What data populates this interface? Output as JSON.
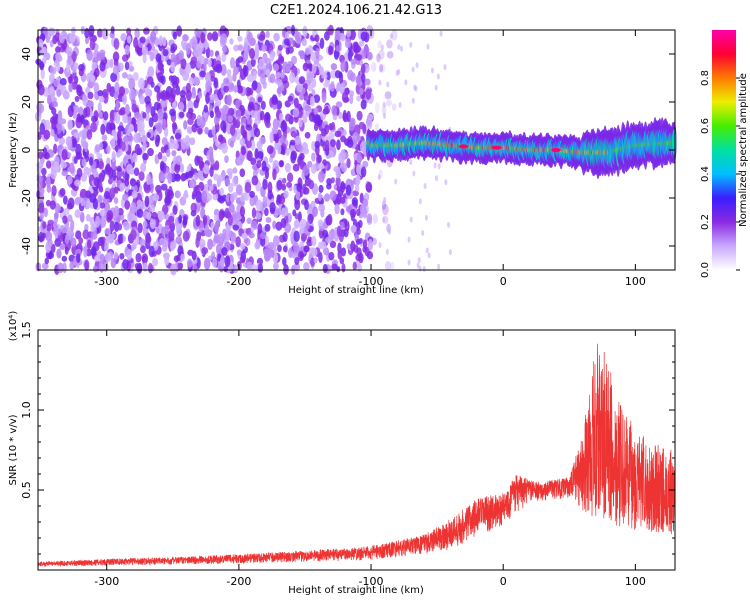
{
  "title": "C2E1.2024.106.21.42.G13",
  "chart_data": [
    {
      "type": "heatmap",
      "xlabel": "Height of straight line (km)",
      "ylabel": "Frequency (Hz)",
      "xlim": [
        -352,
        130
      ],
      "ylim": [
        -50,
        50
      ],
      "xticks": [
        -300,
        -200,
        -100,
        0,
        100
      ],
      "xtick_labels": [
        "-300",
        "-200",
        "-100",
        "0",
        "100"
      ],
      "yticks": [
        -40,
        -20,
        0,
        20,
        40
      ],
      "ytick_labels": [
        "-40",
        "-20",
        "0",
        "20",
        "40"
      ],
      "colorbar": {
        "label": "Normalized spectral amplitude",
        "range": [
          0,
          1
        ],
        "ticks": [
          0.0,
          0.2,
          0.4,
          0.6,
          0.8
        ],
        "tick_labels": [
          "0.0",
          "0.2",
          "0.4",
          "0.6",
          "0.8"
        ],
        "colors": [
          "#ffffff",
          "#c9a8ff",
          "#8a2be2",
          "#3a1dff",
          "#00bfff",
          "#00e0a0",
          "#44ee00",
          "#eeee00",
          "#ff7a00",
          "#ff0033",
          "#ff00aa"
        ]
      },
      "regions": [
        {
          "name": "broadband noise",
          "x_range": [
            -352,
            -90
          ],
          "y_range": [
            -50,
            50
          ],
          "amplitude": 0.15
        },
        {
          "name": "signal band",
          "x_range": [
            -102,
            130
          ],
          "center_frequency_hz": 0,
          "approx_halfwidth_hz": 5,
          "peak_amplitude": 1.0
        }
      ],
      "signal_center_hz": [
        {
          "x": -100,
          "y": 2
        },
        {
          "x": -80,
          "y": 2
        },
        {
          "x": -60,
          "y": 3
        },
        {
          "x": -40,
          "y": 2
        },
        {
          "x": -20,
          "y": 1
        },
        {
          "x": 0,
          "y": 1
        },
        {
          "x": 20,
          "y": 0
        },
        {
          "x": 40,
          "y": 0
        },
        {
          "x": 60,
          "y": -1
        },
        {
          "x": 80,
          "y": -1
        },
        {
          "x": 100,
          "y": 2
        },
        {
          "x": 130,
          "y": 3
        }
      ]
    },
    {
      "type": "line",
      "xlabel": "Height of straight line (km)",
      "ylabel": "SNR (10 * v/v)",
      "y_multiplier_label": "(x10⁴)",
      "xlim": [
        -352,
        130
      ],
      "ylim": [
        0,
        1.5
      ],
      "xticks": [
        -300,
        -200,
        -100,
        0,
        100
      ],
      "xtick_labels": [
        "-300",
        "-200",
        "-100",
        "0",
        "100"
      ],
      "yticks": [
        0.5,
        1.0,
        1.5
      ],
      "ytick_labels": [
        "0.5",
        "1.0",
        "1.5"
      ],
      "color": "#ee3333",
      "envelope": [
        {
          "x": -352,
          "y": 0.05
        },
        {
          "x": -300,
          "y": 0.07
        },
        {
          "x": -250,
          "y": 0.08
        },
        {
          "x": -200,
          "y": 0.1
        },
        {
          "x": -150,
          "y": 0.12
        },
        {
          "x": -100,
          "y": 0.15
        },
        {
          "x": -60,
          "y": 0.22
        },
        {
          "x": -40,
          "y": 0.32
        },
        {
          "x": -20,
          "y": 0.45
        },
        {
          "x": 0,
          "y": 0.48
        },
        {
          "x": 10,
          "y": 0.6
        },
        {
          "x": 25,
          "y": 0.55
        },
        {
          "x": 50,
          "y": 0.58
        },
        {
          "x": 60,
          "y": 0.85
        },
        {
          "x": 72,
          "y": 1.5
        },
        {
          "x": 90,
          "y": 1.0
        },
        {
          "x": 110,
          "y": 0.8
        },
        {
          "x": 130,
          "y": 0.75
        }
      ],
      "baseline": [
        {
          "x": -352,
          "y": 0.02
        },
        {
          "x": -200,
          "y": 0.04
        },
        {
          "x": -100,
          "y": 0.06
        },
        {
          "x": -40,
          "y": 0.12
        },
        {
          "x": 0,
          "y": 0.28
        },
        {
          "x": 20,
          "y": 0.42
        },
        {
          "x": 50,
          "y": 0.45
        },
        {
          "x": 70,
          "y": 0.3
        },
        {
          "x": 100,
          "y": 0.25
        },
        {
          "x": 130,
          "y": 0.22
        }
      ]
    }
  ]
}
